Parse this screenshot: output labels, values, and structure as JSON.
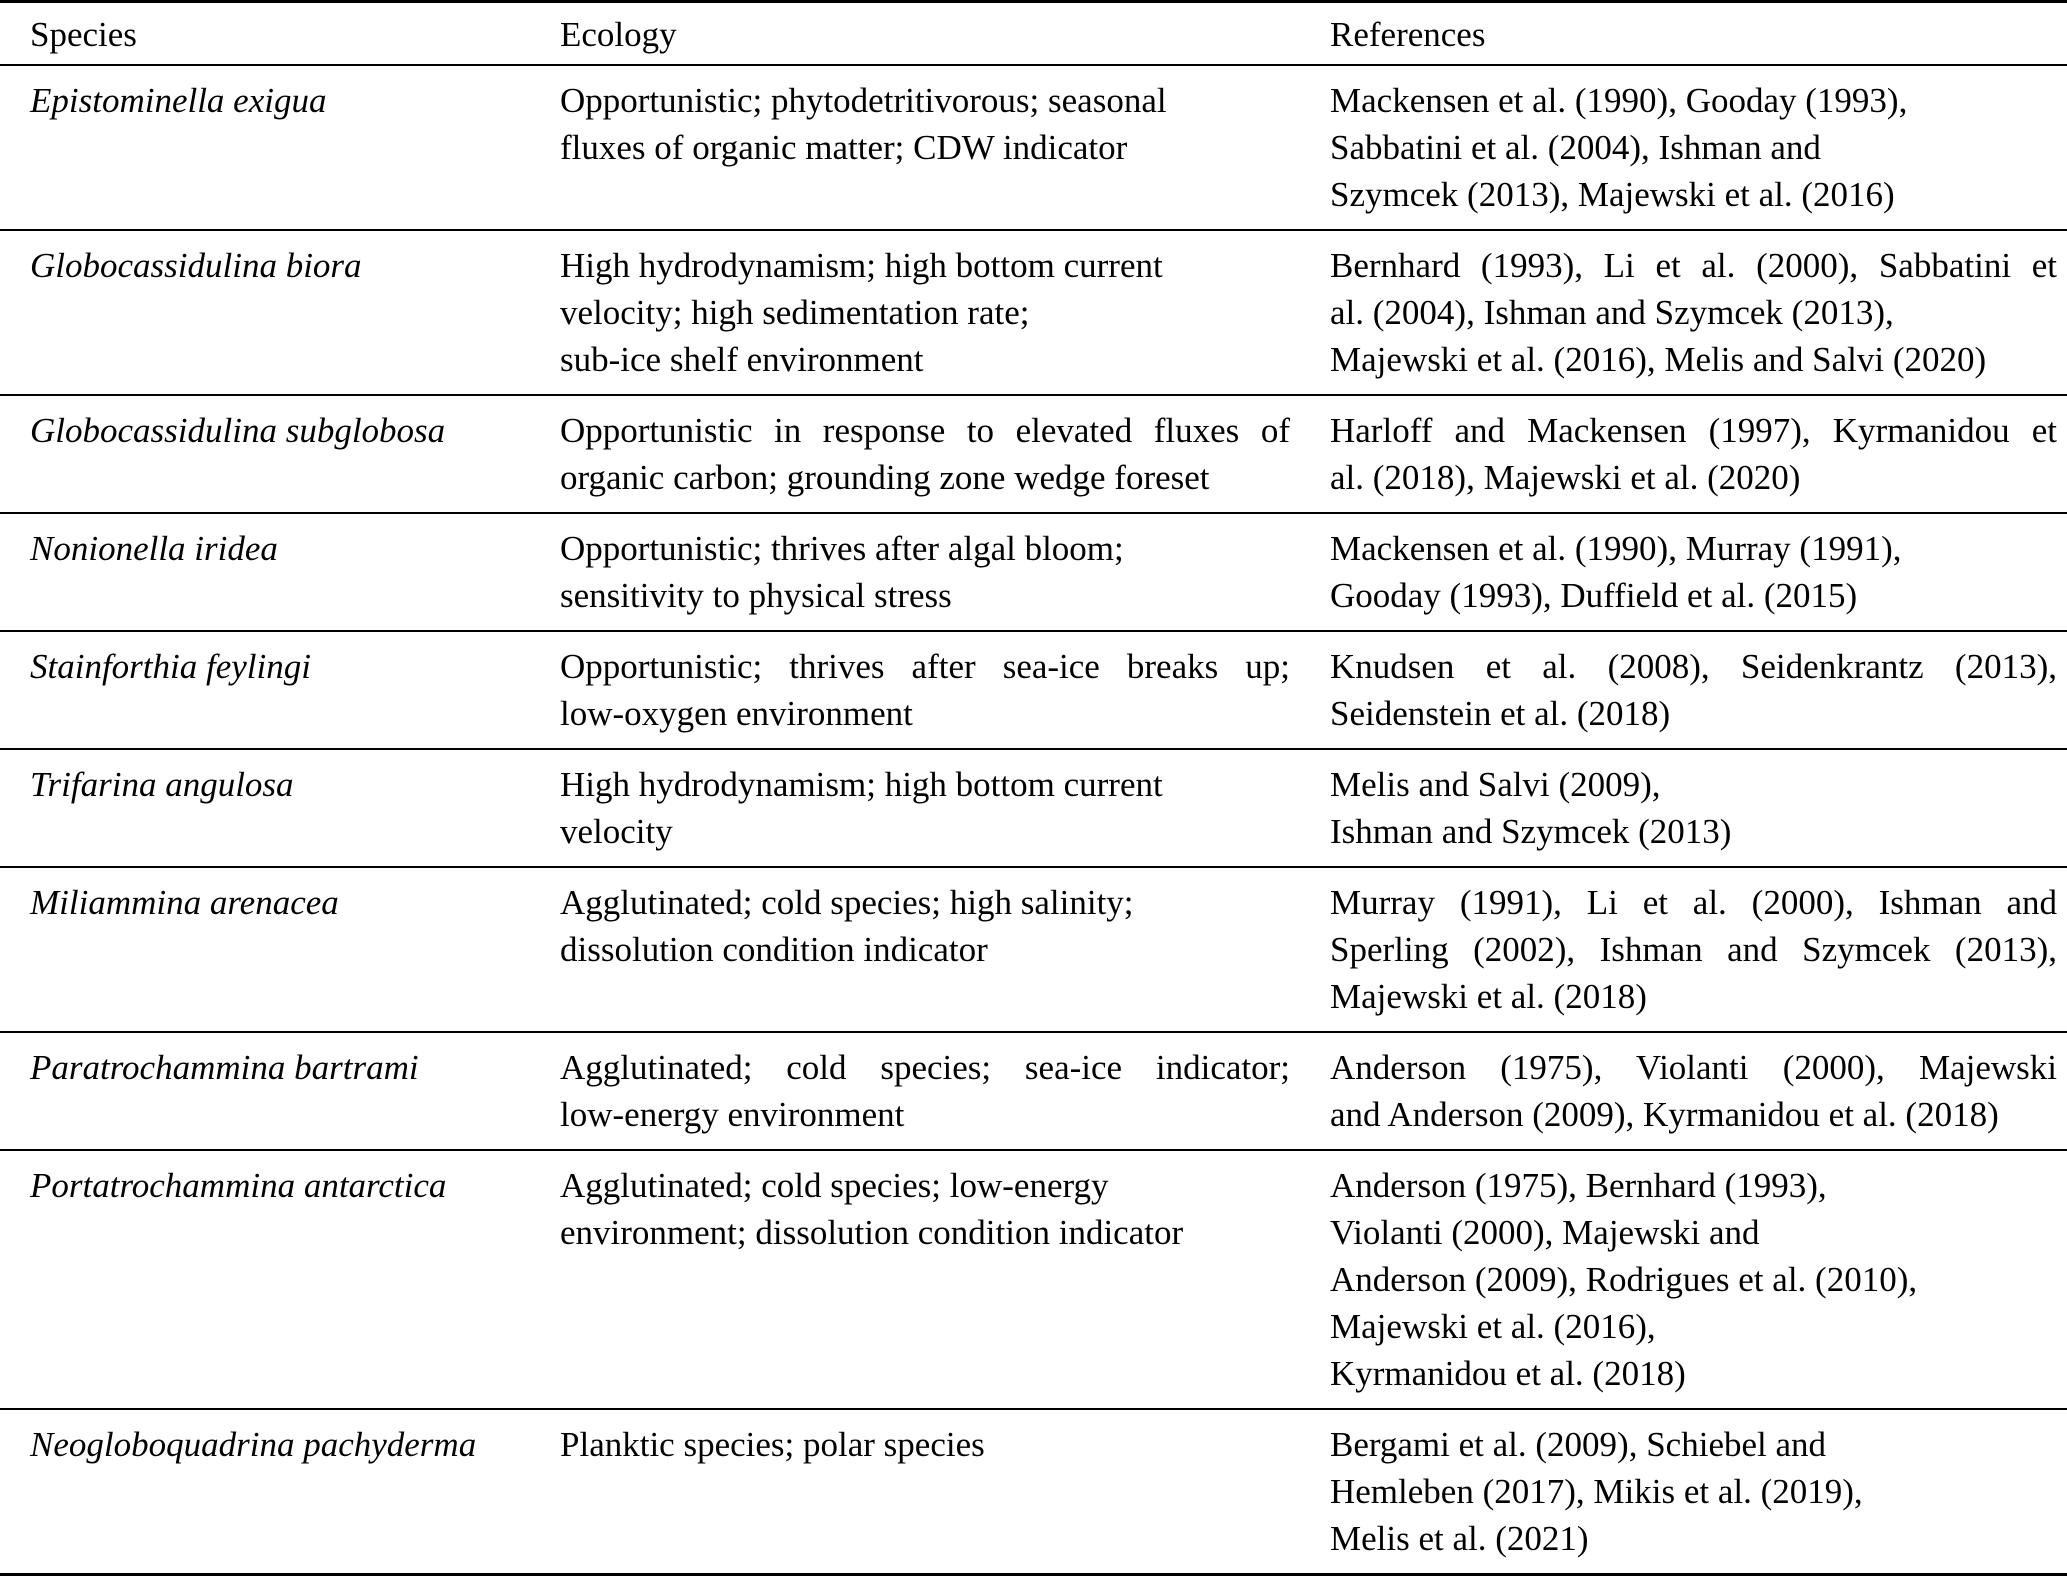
{
  "table": {
    "columns": [
      {
        "label": "Species"
      },
      {
        "label": "Ecology"
      },
      {
        "label": "References"
      }
    ],
    "rows": [
      {
        "species": "Epistominella exigua",
        "ecology": {
          "lines": [
            "Opportunistic; phytodetritivorous; seasonal",
            "fluxes of organic matter; CDW indicator"
          ],
          "stretch": []
        },
        "references": {
          "lines": [
            "Mackensen et al. (1990), Gooday (1993),",
            "Sabbatini et al. (2004), Ishman and",
            "Szymcek (2013), Majewski et al. (2016)"
          ],
          "stretch": []
        }
      },
      {
        "species": "Globocassidulina biora",
        "ecology": {
          "lines": [
            "High hydrodynamism; high bottom current",
            "velocity; high sedimentation rate;",
            "sub-ice shelf environment"
          ],
          "stretch": []
        },
        "references": {
          "lines": [
            "Bernhard (1993), Li et al. (2000), Sabbatini et",
            "al. (2004), Ishman and Szymcek (2013),",
            "Majewski et al. (2016), Melis and Salvi (2020)"
          ],
          "stretch": [
            0
          ]
        }
      },
      {
        "species": "Globocassidulina subglobosa",
        "ecology": {
          "lines": [
            "Opportunistic in response to elevated fluxes of",
            "organic carbon; grounding zone wedge foreset"
          ],
          "stretch": [
            0
          ]
        },
        "references": {
          "lines": [
            "Harloff and Mackensen (1997), Kyrmanidou et",
            "al. (2018), Majewski et al. (2020)"
          ],
          "stretch": [
            0
          ]
        }
      },
      {
        "species": "Nonionella iridea",
        "ecology": {
          "lines": [
            "Opportunistic; thrives after algal bloom;",
            "sensitivity to physical stress"
          ],
          "stretch": []
        },
        "references": {
          "lines": [
            "Mackensen et al. (1990), Murray (1991),",
            "Gooday (1993), Duffield et al. (2015)"
          ],
          "stretch": []
        }
      },
      {
        "species": "Stainforthia feylingi",
        "ecology": {
          "lines": [
            "Opportunistic; thrives after sea-ice breaks up;",
            "low-oxygen environment"
          ],
          "stretch": [
            0
          ]
        },
        "references": {
          "lines": [
            "Knudsen et al. (2008), Seidenkrantz (2013),",
            "Seidenstein et al. (2018)"
          ],
          "stretch": [
            0
          ]
        }
      },
      {
        "species": "Trifarina angulosa",
        "ecology": {
          "lines": [
            "High hydrodynamism; high bottom current",
            "velocity"
          ],
          "stretch": []
        },
        "references": {
          "lines": [
            "Melis and Salvi (2009),",
            "Ishman and Szymcek (2013)"
          ],
          "stretch": []
        }
      },
      {
        "species": "Miliammina arenacea",
        "ecology": {
          "lines": [
            "Agglutinated; cold species; high salinity;",
            "dissolution condition indicator"
          ],
          "stretch": []
        },
        "references": {
          "lines": [
            "Murray (1991), Li et al. (2000), Ishman and",
            "Sperling (2002), Ishman and Szymcek (2013),",
            "Majewski et al. (2018)"
          ],
          "stretch": [
            0,
            1
          ]
        }
      },
      {
        "species": "Paratrochammina bartrami",
        "ecology": {
          "lines": [
            "Agglutinated; cold species; sea-ice indicator;",
            "low-energy environment"
          ],
          "stretch": [
            0
          ]
        },
        "references": {
          "lines": [
            "Anderson (1975), Violanti (2000), Majewski",
            "and Anderson (2009), Kyrmanidou et al. (2018)"
          ],
          "stretch": [
            0
          ]
        }
      },
      {
        "species": "Portatrochammina antarctica",
        "ecology": {
          "lines": [
            "Agglutinated; cold species; low-energy",
            "environment; dissolution condition indicator"
          ],
          "stretch": []
        },
        "references": {
          "lines": [
            "Anderson (1975), Bernhard (1993),",
            "Violanti (2000), Majewski and",
            "Anderson (2009), Rodrigues et al. (2010),",
            "Majewski et al. (2016),",
            "Kyrmanidou et al. (2018)"
          ],
          "stretch": []
        }
      },
      {
        "species": "Neogloboquadrina pachyderma",
        "ecology": {
          "lines": [
            "Planktic species; polar species"
          ],
          "stretch": []
        },
        "references": {
          "lines": [
            "Bergami et al. (2009), Schiebel and",
            "Hemleben (2017), Mikis et al. (2019),",
            "Melis et al. (2021)"
          ],
          "stretch": []
        }
      }
    ]
  }
}
